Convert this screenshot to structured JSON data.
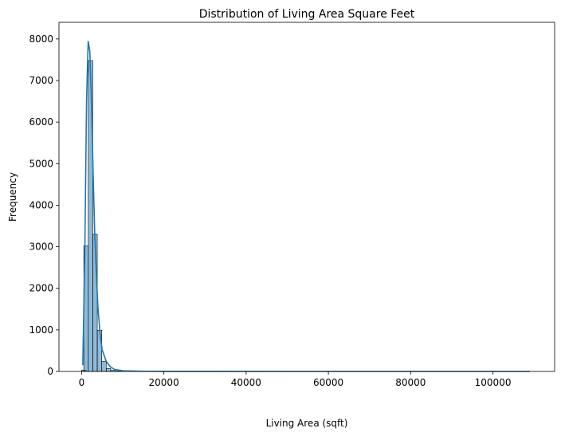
{
  "chart_data": {
    "type": "histogram",
    "title": "Distribution of Living Area Square Feet",
    "xlabel": "Living Area (sqft)",
    "ylabel": "Frequency",
    "xlim": [
      -5500,
      115000
    ],
    "ylim": [
      0,
      8400
    ],
    "xticks": [
      0,
      20000,
      40000,
      60000,
      80000,
      100000
    ],
    "yticks": [
      0,
      1000,
      2000,
      3000,
      4000,
      5000,
      6000,
      7000,
      8000
    ],
    "bin_width": 1090,
    "bins": [
      {
        "x": 0,
        "count": 30
      },
      {
        "x": 540,
        "count": 3020
      },
      {
        "x": 1630,
        "count": 7480
      },
      {
        "x": 2720,
        "count": 3300
      },
      {
        "x": 3810,
        "count": 990
      },
      {
        "x": 4900,
        "count": 240
      },
      {
        "x": 5990,
        "count": 70
      },
      {
        "x": 7080,
        "count": 25
      },
      {
        "x": 8170,
        "count": 10
      },
      {
        "x": 9260,
        "count": 5
      }
    ],
    "kde": {
      "x": [
        290,
        800,
        1200,
        1600,
        2000,
        2400,
        2800,
        3200,
        3600,
        4000,
        4500,
        5000,
        6000,
        7000,
        8000,
        10000,
        15000,
        20000,
        30000,
        50000,
        80000,
        109000
      ],
      "y": [
        150,
        3000,
        6500,
        7950,
        7700,
        6500,
        4800,
        3300,
        2300,
        1500,
        900,
        520,
        240,
        110,
        50,
        15,
        5,
        2,
        1,
        0,
        0,
        0
      ]
    },
    "grid": false,
    "colors": {
      "bar_fill": "#1f77b4",
      "bar_fill_opacity": 0.5,
      "bar_edge": "#000000",
      "kde_line": "#1f77b4"
    }
  }
}
